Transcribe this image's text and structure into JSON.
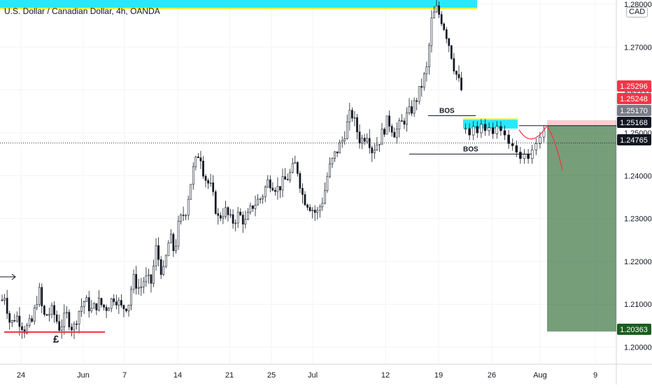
{
  "header": {
    "title": "U.S. Dollar / Canadian Dollar, 4h, OANDA",
    "currency": "CAD"
  },
  "chart_data": {
    "type": "candlestick",
    "symbol": "USD/CAD",
    "interval": "4h",
    "source": "OANDA",
    "ylim": [
      1.196,
      1.281
    ],
    "y_ticks": [
      "1.20000",
      "1.21000",
      "1.22000",
      "1.23000",
      "1.24000",
      "1.25000",
      "1.26000",
      "1.27000",
      "1.28000"
    ],
    "x_ticks": [
      "24",
      "Jun",
      "7",
      "14",
      "21",
      "25",
      "Jul",
      "12",
      "19",
      "26",
      "Aug",
      "9"
    ],
    "date_range": [
      "2021-05-22",
      "2021-08-13"
    ],
    "price_labels": [
      {
        "text": "1.25296",
        "color": "#f23645"
      },
      {
        "text": "1.25248",
        "color": "#f23645"
      },
      {
        "text": "1.25170",
        "color": "#787b86"
      },
      {
        "text": "1.25168",
        "color": "#131722"
      },
      {
        "text": "1.24765",
        "color": "#131722"
      },
      {
        "text": "1.20363",
        "color": "#1b5e20"
      }
    ],
    "price_path": [
      [
        0.0,
        1.211
      ],
      [
        0.004,
        1.213
      ],
      [
        0.018,
        1.205
      ],
      [
        0.03,
        1.2075
      ],
      [
        0.05,
        1.204
      ],
      [
        0.066,
        1.206
      ],
      [
        0.08,
        1.2135
      ],
      [
        0.09,
        1.207
      ],
      [
        0.11,
        1.2085
      ],
      [
        0.125,
        1.2045
      ],
      [
        0.14,
        1.2075
      ],
      [
        0.155,
        1.204
      ],
      [
        0.165,
        1.208
      ],
      [
        0.18,
        1.211
      ],
      [
        0.195,
        1.2085
      ],
      [
        0.21,
        1.2105
      ],
      [
        0.225,
        1.209
      ],
      [
        0.245,
        1.212
      ],
      [
        0.26,
        1.209
      ],
      [
        0.275,
        1.21
      ],
      [
        0.285,
        1.216
      ],
      [
        0.3,
        1.2135
      ],
      [
        0.31,
        1.216
      ],
      [
        0.325,
        1.215
      ],
      [
        0.335,
        1.223
      ],
      [
        0.35,
        1.2165
      ],
      [
        0.365,
        1.226
      ],
      [
        0.375,
        1.222
      ],
      [
        0.385,
        1.229
      ],
      [
        0.4,
        1.232
      ],
      [
        0.415,
        1.241
      ],
      [
        0.43,
        1.246
      ],
      [
        0.44,
        1.24
      ],
      [
        0.455,
        1.237
      ],
      [
        0.47,
        1.23
      ],
      [
        0.485,
        1.232
      ],
      [
        0.5,
        1.229
      ],
      [
        0.515,
        1.231
      ],
      [
        0.53,
        1.229
      ],
      [
        0.545,
        1.233
      ],
      [
        0.565,
        1.235
      ],
      [
        0.58,
        1.239
      ],
      [
        0.6,
        1.237
      ],
      [
        0.625,
        1.24
      ],
      [
        0.64,
        1.243
      ],
      [
        0.655,
        1.235
      ],
      [
        0.67,
        1.233
      ],
      [
        0.685,
        1.231
      ],
      [
        0.7,
        1.235
      ],
      [
        0.71,
        1.241
      ],
      [
        0.725,
        1.245
      ],
      [
        0.74,
        1.248
      ],
      [
        0.76,
        1.255
      ],
      [
        0.78,
        1.248
      ],
      [
        0.795,
        1.25
      ],
      [
        0.805,
        1.246
      ],
      [
        0.82,
        1.248
      ],
      [
        0.84,
        1.253
      ],
      [
        0.855,
        1.25
      ],
      [
        0.875,
        1.253
      ],
      [
        0.895,
        1.256
      ],
      [
        0.91,
        1.26
      ],
      [
        0.925,
        1.265
      ],
      [
        0.935,
        1.276
      ],
      [
        0.945,
        1.279
      ],
      [
        0.955,
        1.277
      ],
      [
        0.965,
        1.274
      ],
      [
        0.975,
        1.27
      ],
      [
        0.985,
        1.265
      ],
      [
        1.0,
        1.26
      ]
    ],
    "annotations": {
      "bos_label": "BOS",
      "pound_label": "£"
    }
  }
}
